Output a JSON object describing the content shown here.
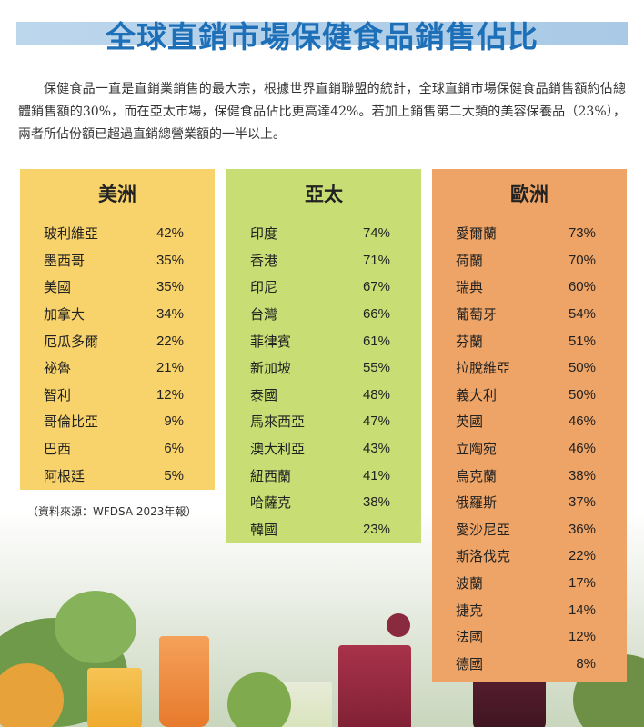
{
  "title": "全球直銷市場保健食品銷售佔比",
  "intro": "保健食品一直是直銷業銷售的最大宗，根據世界直銷聯盟的統計，全球直銷市場保健食品銷售額約佔總體銷售額的30%，而在亞太市場，保健食品佔比更高達42%。若加上銷售第二大類的美容保養品（23%），兩者所佔份額已超過直銷總營業額的一半以上。",
  "source": "（資料來源：WFDSA 2023年報）",
  "colors": {
    "title": "#1d6fb8",
    "america": "#f8d36b",
    "asia": "#c8de74",
    "europe": "#eea466"
  },
  "regions": [
    {
      "name": "美洲",
      "rows": [
        {
          "country": "玻利維亞",
          "pct": "42%"
        },
        {
          "country": "墨西哥",
          "pct": "35%"
        },
        {
          "country": "美國",
          "pct": "35%"
        },
        {
          "country": "加拿大",
          "pct": "34%"
        },
        {
          "country": "厄瓜多爾",
          "pct": "22%"
        },
        {
          "country": "祕魯",
          "pct": "21%"
        },
        {
          "country": "智利",
          "pct": "12%"
        },
        {
          "country": "哥倫比亞",
          "pct": "9%"
        },
        {
          "country": "巴西",
          "pct": "6%"
        },
        {
          "country": "阿根廷",
          "pct": "5%"
        }
      ]
    },
    {
      "name": "亞太",
      "rows": [
        {
          "country": "印度",
          "pct": "74%"
        },
        {
          "country": "香港",
          "pct": "71%"
        },
        {
          "country": "印尼",
          "pct": "67%"
        },
        {
          "country": "台灣",
          "pct": "66%"
        },
        {
          "country": "菲律賓",
          "pct": "61%"
        },
        {
          "country": "新加坡",
          "pct": "55%"
        },
        {
          "country": "泰國",
          "pct": "48%"
        },
        {
          "country": "馬來西亞",
          "pct": "47%"
        },
        {
          "country": "澳大利亞",
          "pct": "43%"
        },
        {
          "country": "紐西蘭",
          "pct": "41%"
        },
        {
          "country": "哈薩克",
          "pct": "38%"
        },
        {
          "country": "韓國",
          "pct": "23%"
        }
      ]
    },
    {
      "name": "歐洲",
      "rows": [
        {
          "country": "愛爾蘭",
          "pct": "73%"
        },
        {
          "country": "荷蘭",
          "pct": "70%"
        },
        {
          "country": "瑞典",
          "pct": "60%"
        },
        {
          "country": "葡萄牙",
          "pct": "54%"
        },
        {
          "country": "芬蘭",
          "pct": "51%"
        },
        {
          "country": "拉脫維亞",
          "pct": "50%"
        },
        {
          "country": "義大利",
          "pct": "50%"
        },
        {
          "country": "英國",
          "pct": "46%"
        },
        {
          "country": "立陶宛",
          "pct": "46%"
        },
        {
          "country": "烏克蘭",
          "pct": "38%"
        },
        {
          "country": "俄羅斯",
          "pct": "37%"
        },
        {
          "country": "愛沙尼亞",
          "pct": "36%"
        },
        {
          "country": "斯洛伐克",
          "pct": "22%"
        },
        {
          "country": "波蘭",
          "pct": "17%"
        },
        {
          "country": "捷克",
          "pct": "14%"
        },
        {
          "country": "法國",
          "pct": "12%"
        },
        {
          "country": "德國",
          "pct": "8%"
        }
      ]
    }
  ]
}
